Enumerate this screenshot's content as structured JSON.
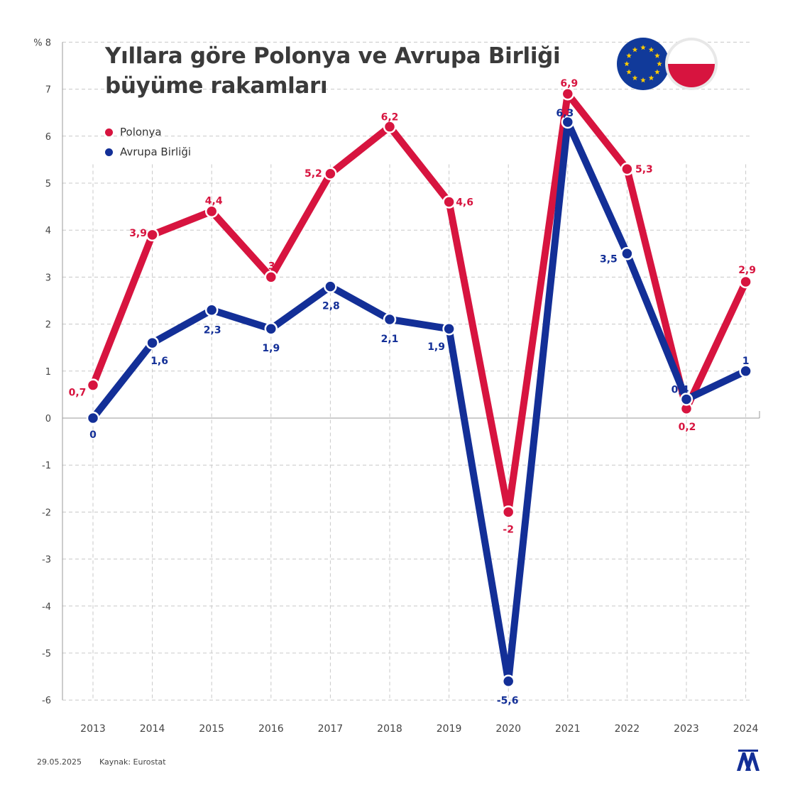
{
  "header": {
    "title_line1": "Yıllara göre Polonya ve Avrupa Birliği",
    "title_line2": "büyüme rakamları"
  },
  "legend": [
    {
      "label": "Polonya",
      "color": "#d7143f"
    },
    {
      "label": "Avrupa Birliği",
      "color": "#132f97"
    }
  ],
  "footer": {
    "date": "29.05.2025",
    "source": "Kaynak: Eurostat"
  },
  "colors": {
    "poland": "#d7143f",
    "eu": "#132f97",
    "eu_flag_bg": "#113a9a",
    "eu_star": "#ffcc00",
    "grid": "#c8c8c8",
    "axis_text": "#444444"
  },
  "icons": [
    "eu-flag-icon",
    "poland-flag-icon",
    "aa-logo-icon"
  ],
  "chart_data": {
    "type": "line",
    "title": "Yıllara göre Polonya ve Avrupa Birliği büyüme rakamları",
    "ylabel": "%",
    "xlabel": "",
    "ylim": [
      -6,
      8
    ],
    "yticks": [
      -6,
      -5,
      -4,
      -3,
      -2,
      -1,
      0,
      1,
      2,
      3,
      4,
      5,
      6,
      7,
      8
    ],
    "y_top_label": "% 8",
    "categories": [
      "2013",
      "2014",
      "2015",
      "2016",
      "2017",
      "2018",
      "2019",
      "2020",
      "2021",
      "2022",
      "2023",
      "2024"
    ],
    "grid": true,
    "legend_position": "top-left",
    "series": [
      {
        "name": "Polonya",
        "color": "#d7143f",
        "values": [
          0.7,
          3.9,
          4.4,
          3,
          5.2,
          6.2,
          4.6,
          -2,
          6.9,
          5.3,
          0.2,
          2.9
        ],
        "labels": [
          "0,7",
          "3,9",
          "4,4",
          "3",
          "5,2",
          "6,2",
          "4,6",
          "-2",
          "6,9",
          "5,3",
          "0,2",
          "2,9"
        ]
      },
      {
        "name": "Avrupa Birliği",
        "color": "#132f97",
        "values": [
          0,
          1.6,
          2.3,
          1.9,
          2.8,
          2.1,
          1.9,
          -5.6,
          6.3,
          3.5,
          0.4,
          1
        ],
        "labels": [
          "0",
          "1,6",
          "2,3",
          "1,9",
          "2,8",
          "2,1",
          "1,9",
          "-5,6",
          "6,3",
          "3,5",
          "0,4",
          "1"
        ]
      }
    ]
  }
}
